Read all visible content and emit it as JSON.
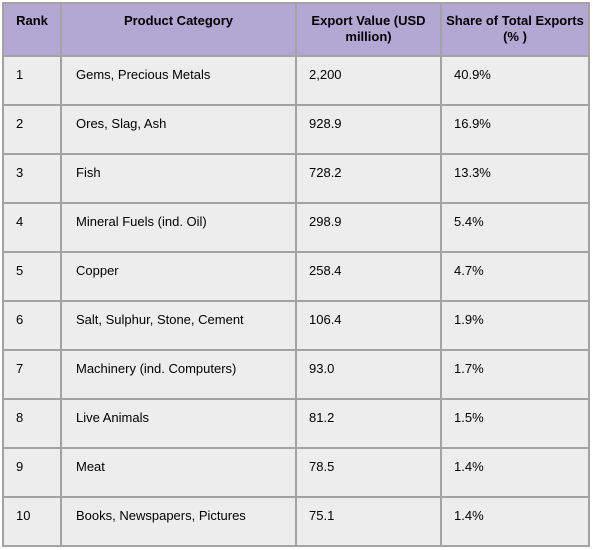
{
  "chart_data": {
    "type": "table",
    "columns": [
      "Rank",
      "Product Category",
      "Export Value (USD million)",
      "Share of Total Exports (% )"
    ],
    "rows": [
      [
        "1",
        "Gems, Precious Metals",
        "2,200",
        "40.9%"
      ],
      [
        "2",
        "Ores, Slag, Ash",
        "928.9",
        "16.9%"
      ],
      [
        "3",
        "Fish",
        "728.2",
        "13.3%"
      ],
      [
        "4",
        "Mineral Fuels (ind. Oil)",
        "298.9",
        "5.4%"
      ],
      [
        "5",
        "Copper",
        "258.4",
        "4.7%"
      ],
      [
        "6",
        "Salt, Sulphur, Stone, Cement",
        "106.4",
        "1.9%"
      ],
      [
        "7",
        "Machinery (ind. Computers)",
        "93.0",
        "1.7%"
      ],
      [
        "8",
        "Live Animals",
        "81.2",
        "1.5%"
      ],
      [
        "9",
        "Meat",
        "78.5",
        "1.4%"
      ],
      [
        "10",
        "Books, Newspapers, Pictures",
        "75.1",
        "1.4%"
      ]
    ]
  },
  "colors": {
    "header_bg": "#b3a7d3",
    "row_bg": "#ededed",
    "grid_border": "#a3a3a3",
    "text": "#000000",
    "page_bg": "#ffffff"
  }
}
